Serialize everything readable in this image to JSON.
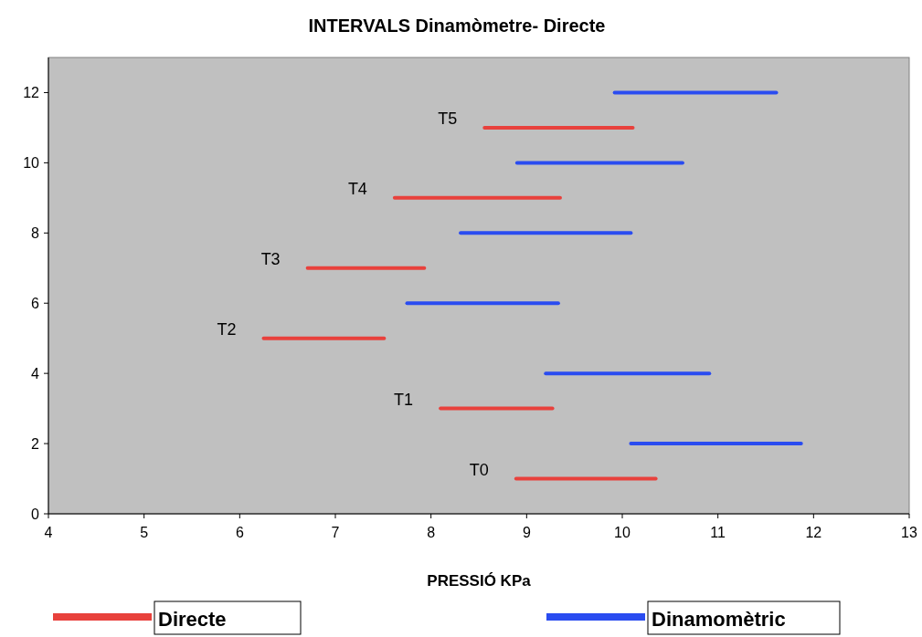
{
  "chart_data": {
    "type": "line",
    "title": "INTERVALS Dinamòmetre- Directe",
    "xlabel": "PRESSIÓ KPa",
    "xlim": [
      4,
      13
    ],
    "xticks": [
      4,
      5,
      6,
      7,
      8,
      9,
      10,
      11,
      12,
      13
    ],
    "ylim": [
      0,
      13
    ],
    "yticks": [
      0,
      2,
      4,
      6,
      8,
      10,
      12
    ],
    "grid": false,
    "legend": "bottom",
    "marker": "none",
    "line_style": "solid",
    "series": [
      {
        "name": "Directe",
        "color": "#e8413c",
        "x": [
          8.89,
          10.35
        ],
        "values": [
          1,
          1
        ]
      },
      {
        "color": "#e8413c",
        "x": [
          8.1,
          9.27
        ],
        "values": [
          3,
          3
        ]
      },
      {
        "color": "#e8413c",
        "x": [
          6.25,
          7.51
        ],
        "values": [
          5,
          5
        ]
      },
      {
        "color": "#e8413c",
        "x": [
          6.71,
          7.93
        ],
        "values": [
          7,
          7
        ]
      },
      {
        "color": "#e8413c",
        "x": [
          7.62,
          9.35
        ],
        "values": [
          9,
          9
        ]
      },
      {
        "color": "#e8413c",
        "x": [
          8.56,
          10.11
        ],
        "values": [
          11,
          11
        ]
      },
      {
        "name": "Dinamomètric",
        "color": "#2a4cf0",
        "x": [
          10.09,
          11.87
        ],
        "values": [
          2,
          2
        ]
      },
      {
        "color": "#2a4cf0",
        "x": [
          9.2,
          10.91
        ],
        "values": [
          4,
          4
        ]
      },
      {
        "color": "#2a4cf0",
        "x": [
          7.75,
          9.33
        ],
        "values": [
          6,
          6
        ]
      },
      {
        "color": "#2a4cf0",
        "x": [
          8.31,
          10.09
        ],
        "values": [
          8,
          8
        ]
      },
      {
        "color": "#2a4cf0",
        "x": [
          8.9,
          10.63
        ],
        "values": [
          10,
          10
        ]
      },
      {
        "color": "#2a4cf0",
        "x": [
          9.92,
          11.61
        ],
        "values": [
          12,
          12
        ]
      }
    ],
    "annotations": [
      {
        "text": "T0",
        "x": 8.89,
        "y": 1
      },
      {
        "text": "T1",
        "x": 8.1,
        "y": 3
      },
      {
        "text": "T2",
        "x": 6.25,
        "y": 5
      },
      {
        "text": "T3",
        "x": 6.71,
        "y": 7
      },
      {
        "text": "T4",
        "x": 7.62,
        "y": 9
      },
      {
        "text": "T5",
        "x": 8.56,
        "y": 11
      }
    ]
  }
}
